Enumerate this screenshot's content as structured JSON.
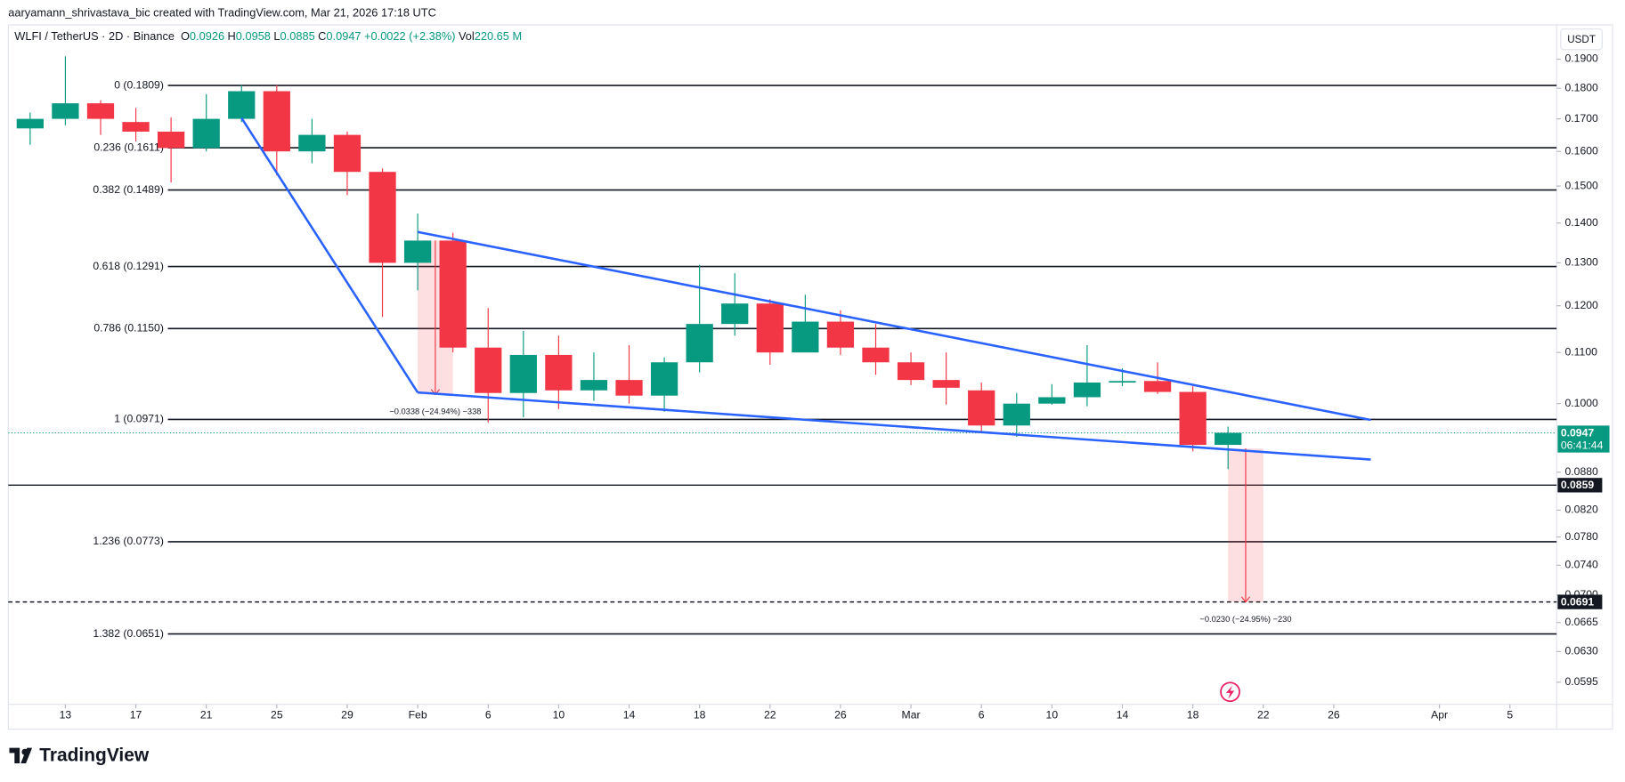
{
  "header": {
    "credit": "aaryamann_shrivastava_bic created with TradingView.com, Mar 21, 2026 17:18 UTC"
  },
  "chart_data": {
    "type": "candlestick",
    "symbol": "WLFI / TetherUS · 2D · Binance",
    "legend_fields": [
      [
        "O",
        "0.0926"
      ],
      [
        "H",
        "0.0958"
      ],
      [
        "L",
        "0.0885"
      ],
      [
        "C",
        "0.0947"
      ]
    ],
    "change": "+0.0022 (+2.38%)",
    "volume_label": "Vol",
    "volume": "220.65 M",
    "currency": "USDT",
    "x": [
      11,
      13,
      15,
      17,
      19,
      21,
      23,
      25,
      27,
      29,
      31,
      33,
      35,
      37,
      39,
      41,
      43,
      45,
      47,
      49,
      51,
      53,
      55,
      57,
      59,
      61,
      63,
      65,
      67,
      69,
      71,
      73,
      75,
      77,
      79
    ],
    "open": [
      0.167,
      0.17,
      0.175,
      0.169,
      0.166,
      0.161,
      0.17,
      0.179,
      0.16,
      0.165,
      0.154,
      0.13,
      0.1355,
      0.111,
      0.102,
      0.1095,
      0.1025,
      0.1045,
      0.1015,
      0.108,
      0.116,
      0.1205,
      0.11,
      0.1165,
      0.111,
      0.108,
      0.1045,
      0.1025,
      0.096,
      0.1,
      0.1012,
      0.104,
      0.1043,
      0.1022,
      0.0926
    ],
    "high": [
      0.172,
      0.191,
      0.176,
      0.1735,
      0.1705,
      0.178,
      0.181,
      0.181,
      0.17,
      0.166,
      0.155,
      0.1425,
      0.1375,
      0.1195,
      0.1145,
      0.1135,
      0.11,
      0.1115,
      0.109,
      0.1295,
      0.1275,
      0.1215,
      0.1225,
      0.119,
      0.116,
      0.11,
      0.11,
      0.104,
      0.102,
      0.1037,
      0.1115,
      0.1068,
      0.108,
      0.1033,
      0.0958
    ],
    "low": [
      0.162,
      0.168,
      0.165,
      0.163,
      0.151,
      0.16,
      0.169,
      0.153,
      0.1565,
      0.1475,
      0.1175,
      0.1235,
      0.11,
      0.0965,
      0.0975,
      0.099,
      0.1005,
      0.1,
      0.0985,
      0.106,
      0.1135,
      0.1075,
      0.1105,
      0.1095,
      0.1055,
      0.1035,
      0.0998,
      0.095,
      0.094,
      0.0998,
      0.0995,
      0.1033,
      0.1018,
      0.0915,
      0.0885
    ],
    "close": [
      0.17,
      0.175,
      0.17,
      0.166,
      0.161,
      0.17,
      0.179,
      0.16,
      0.165,
      0.154,
      0.13,
      0.1355,
      0.111,
      0.102,
      0.1095,
      0.1025,
      0.1045,
      0.1015,
      0.108,
      0.116,
      0.1205,
      0.11,
      0.1165,
      0.111,
      0.108,
      0.1045,
      0.103,
      0.096,
      0.1,
      0.1012,
      0.104,
      0.1043,
      0.1022,
      0.0926,
      0.0947
    ],
    "up_color": "#089981",
    "down_color": "#f23645",
    "xlim": [
      9.76,
      97.65
    ],
    "xticks": [
      13,
      17,
      21,
      25,
      29,
      {
        "value": 33,
        "label": "Feb"
      },
      {
        "value": 37,
        "label": "6"
      },
      {
        "value": 41,
        "label": "10"
      },
      {
        "value": 45,
        "label": "14"
      },
      {
        "value": 49,
        "label": "18"
      },
      {
        "value": 53,
        "label": "22"
      },
      {
        "value": 57,
        "label": "26"
      },
      {
        "value": 61,
        "label": "Mar"
      },
      {
        "value": 65,
        "label": "6"
      },
      {
        "value": 69,
        "label": "10"
      },
      {
        "value": 73,
        "label": "14"
      },
      {
        "value": 77,
        "label": "18"
      },
      {
        "value": 81,
        "label": "22"
      },
      {
        "value": 85,
        "label": "26"
      },
      {
        "value": 91,
        "label": "Apr"
      },
      {
        "value": 95,
        "label": "5"
      }
    ],
    "ylim": [
      0.0571,
      0.1945
    ],
    "log_scale": true,
    "yticks": [
      {
        "value": 0.19,
        "label": "0.1900"
      },
      {
        "value": 0.18,
        "label": "0.1800"
      },
      {
        "value": 0.17,
        "label": "0.1700"
      },
      {
        "value": 0.16,
        "label": "0.1600"
      },
      {
        "value": 0.15,
        "label": "0.1500"
      },
      {
        "value": 0.14,
        "label": "0.1400"
      },
      {
        "value": 0.13,
        "label": "0.1300"
      },
      {
        "value": 0.12,
        "label": "0.1200"
      },
      {
        "value": 0.11,
        "label": "0.1100"
      },
      {
        "value": 0.1,
        "label": "0.1000"
      },
      {
        "value": 0.088,
        "label": "0.0880"
      },
      {
        "value": 0.082,
        "label": "0.0820"
      },
      {
        "value": 0.078,
        "label": "0.0780"
      },
      {
        "value": 0.074,
        "label": "0.0740"
      },
      {
        "value": 0.07,
        "label": "0.0700"
      },
      {
        "value": 0.0665,
        "label": "0.0665"
      },
      {
        "value": 0.063,
        "label": "0.0630"
      },
      {
        "value": 0.0595,
        "label": "0.0595"
      }
    ],
    "fib_levels": [
      {
        "value": 0.1809,
        "label": "0 (0.1809)"
      },
      {
        "value": 0.1611,
        "label": "0.236 (0.1611)"
      },
      {
        "value": 0.1489,
        "label": "0.382 (0.1489)"
      },
      {
        "value": 0.1291,
        "label": "0.618 (0.1291)"
      },
      {
        "value": 0.115,
        "label": "0.786 (0.1150)"
      },
      {
        "value": 0.0971,
        "label": "1 (0.0971)"
      },
      {
        "value": 0.0773,
        "label": "1.236 (0.0773)"
      },
      {
        "value": 0.0651,
        "label": "1.382 (0.0651)"
      }
    ],
    "trendline_color": "#2962ff",
    "trendlines": [
      {
        "x": [
          23,
          33
        ],
        "y": [
          0.1703,
          0.1021
        ]
      },
      {
        "x": [
          33,
          87.1
        ],
        "y": [
          0.1377,
          0.097
        ]
      },
      {
        "x": [
          33,
          87.1
        ],
        "y": [
          0.1021,
          0.0901
        ]
      }
    ],
    "measures": [
      {
        "x": [
          33,
          35
        ],
        "y": [
          0.1355,
          0.1017
        ],
        "label": "−0.0338 (−24.94%) −338"
      },
      {
        "x": [
          79,
          81
        ],
        "y": [
          0.092,
          0.0691
        ],
        "label": "−0.0230 (−24.95%) −230"
      }
    ],
    "price_lines": [
      {
        "value": 0.0859,
        "style": "solid"
      },
      {
        "value": 0.0691,
        "style": "dashed"
      }
    ],
    "last_price": {
      "value": 0.0947,
      "countdown": "06:41:44"
    }
  },
  "footer": {
    "brand": "TradingView"
  }
}
